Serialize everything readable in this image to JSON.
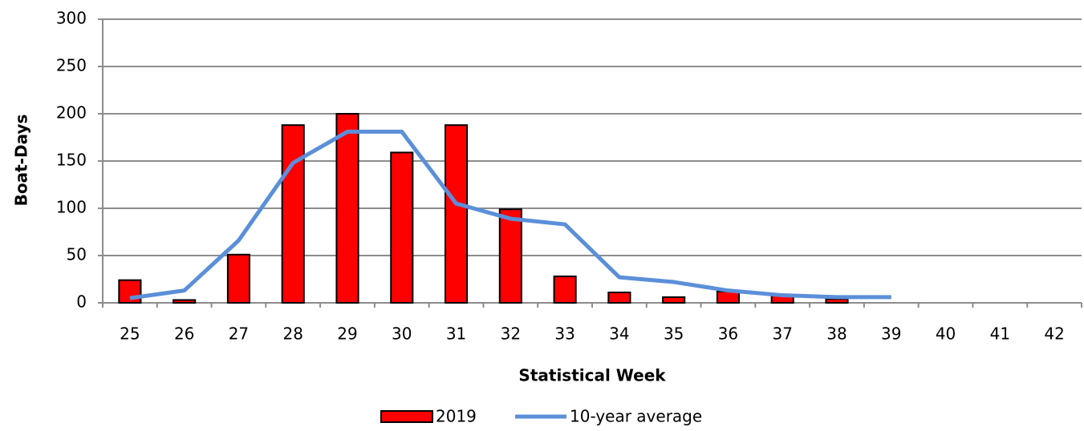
{
  "chart_data": {
    "type": "bar",
    "x_label": "Statistical Week",
    "y_label": "Boat-Days",
    "categories": [
      "25",
      "26",
      "27",
      "28",
      "29",
      "30",
      "31",
      "32",
      "33",
      "34",
      "35",
      "36",
      "37",
      "38",
      "39",
      "40",
      "41",
      "42"
    ],
    "series": [
      {
        "name": "2019",
        "type": "bar",
        "color": "#ff0000",
        "values": [
          24,
          3,
          51,
          188,
          200,
          159,
          188,
          99,
          28,
          11,
          6,
          12,
          8,
          4,
          null,
          null,
          null,
          null
        ]
      },
      {
        "name": "10-year average",
        "type": "line",
        "color": "#5b8fd9",
        "values": [
          5,
          13,
          66,
          148,
          181,
          181,
          105,
          89,
          83,
          27,
          22,
          13,
          8,
          6,
          6,
          null,
          null,
          null
        ]
      }
    ],
    "ylim": [
      0,
      300
    ],
    "yticks": [
      0,
      50,
      100,
      150,
      200,
      250,
      300
    ],
    "grid": true
  }
}
